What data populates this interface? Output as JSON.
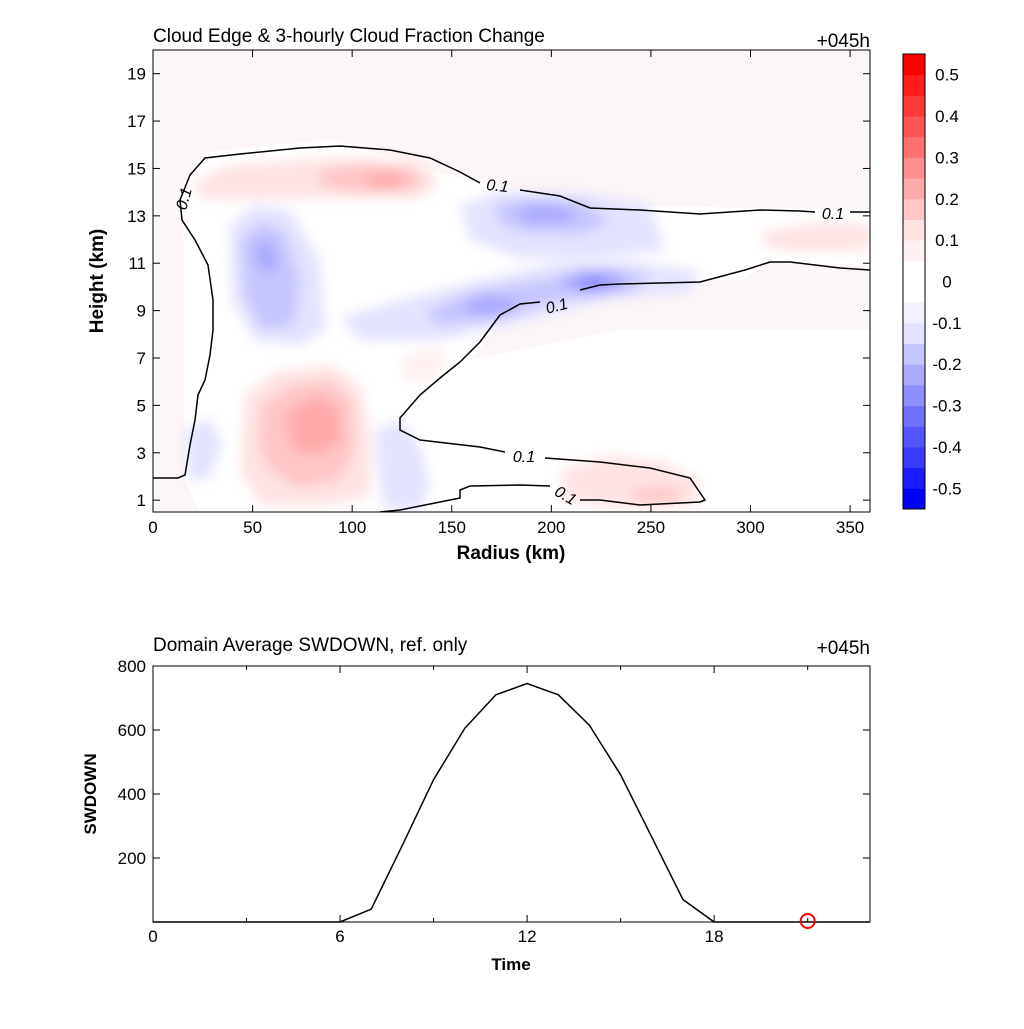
{
  "chart_data": [
    {
      "type": "contour",
      "title": "Cloud Edge & 3-hourly Cloud Fraction Change",
      "time_label": "+045h",
      "xlabel": "Radius (km)",
      "ylabel": "Height (km)",
      "xlim": [
        0,
        360
      ],
      "ylim": [
        0.5,
        20
      ],
      "xticks": [
        "0",
        "50",
        "100",
        "150",
        "200",
        "250",
        "300",
        "350"
      ],
      "yticks": [
        "1",
        "3",
        "5",
        "7",
        "9",
        "11",
        "13",
        "15",
        "17",
        "19"
      ],
      "contour_level": 0.1,
      "contour_labels": [
        "0.1",
        "0.1",
        "0.1",
        "0.1",
        "0.1",
        "0.1"
      ],
      "colorbar": {
        "levels": [
          -0.55,
          -0.5,
          -0.45,
          -0.4,
          -0.35,
          -0.3,
          -0.25,
          -0.2,
          -0.15,
          -0.1,
          -0.05,
          0.05,
          0.1,
          0.15,
          0.2,
          0.25,
          0.3,
          0.35,
          0.4,
          0.45,
          0.5,
          0.55
        ],
        "tick_labels": [
          "0.5",
          "0.4",
          "0.3",
          "0.2",
          "0.1",
          "0",
          "-0.1",
          "-0.2",
          "-0.3",
          "-0.4",
          "-0.5"
        ],
        "colors": [
          "#0000ff",
          "#1c1cff",
          "#3939ff",
          "#5555ff",
          "#7171ff",
          "#8e8eff",
          "#aaaaff",
          "#c6c6ff",
          "#e3e3ff",
          "#f1f1ff",
          "#ffffff",
          "#fff1f1",
          "#ffe3e3",
          "#ffc6c6",
          "#ffaaaa",
          "#ff8e8e",
          "#ff7171",
          "#ff5555",
          "#ff3939",
          "#ff1c1c",
          "#ff0000"
        ]
      },
      "anomaly_features": [
        {
          "sign": "positive",
          "x": 80,
          "y": 4.2,
          "peak": 0.15
        },
        {
          "sign": "positive",
          "x": 118,
          "y": 14.6,
          "peak": 0.15
        },
        {
          "sign": "positive",
          "x": 230,
          "y": 1.6,
          "peak": 0.1
        },
        {
          "sign": "positive",
          "x": 345,
          "y": 12.0,
          "peak": 0.05
        },
        {
          "sign": "negative",
          "x": 57,
          "y": 10.5,
          "peak": -0.2
        },
        {
          "sign": "negative",
          "x": 195,
          "y": 13.0,
          "peak": -0.2
        },
        {
          "sign": "negative",
          "x": 175,
          "y": 9.3,
          "peak": -0.25
        },
        {
          "sign": "negative",
          "x": 222,
          "y": 10.2,
          "peak": -0.3
        },
        {
          "sign": "negative",
          "x": 128,
          "y": 2.5,
          "peak": -0.1
        }
      ]
    },
    {
      "type": "line",
      "title": "Domain Average SWDOWN, ref. only",
      "time_label": "+045h",
      "xlabel": "Time",
      "ylabel": "SWDOWN",
      "xlim": [
        0,
        23
      ],
      "ylim": [
        0,
        800
      ],
      "xticks": [
        "0",
        "6",
        "12",
        "18"
      ],
      "yticks": [
        "200",
        "400",
        "600",
        "800"
      ],
      "x": [
        0,
        6,
        7,
        8,
        9,
        10,
        11,
        12,
        13,
        14,
        15,
        16,
        17,
        18,
        21,
        23
      ],
      "y": [
        0,
        0,
        40,
        240,
        445,
        605,
        710,
        745,
        710,
        615,
        460,
        265,
        70,
        0,
        0,
        0
      ],
      "marker": {
        "x": 21,
        "y": 0,
        "color": "#ff0000",
        "shape": "open-circle"
      }
    }
  ]
}
